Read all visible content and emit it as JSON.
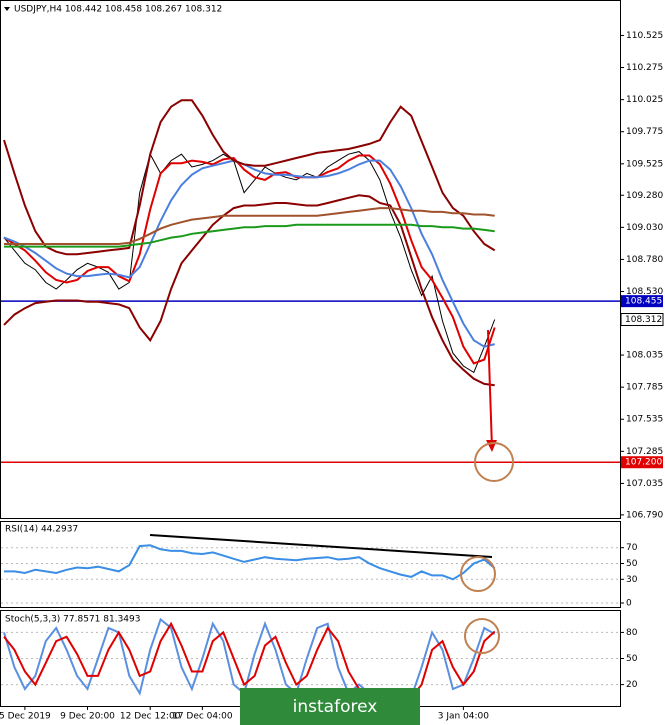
{
  "chart_data": [
    {
      "type": "line",
      "title": "USDJPY,H4  108.442 108.458 108.267 108.312",
      "xlim": [
        0,
        59
      ],
      "ylim": [
        106.75,
        110.77
      ],
      "yticks": [
        110.525,
        110.275,
        110.025,
        109.775,
        109.525,
        {
          "value": 109.28,
          "label": "109.280"
        },
        {
          "value": 109.03,
          "label": "109.030"
        },
        {
          "value": 108.78,
          "label": "108.780"
        },
        {
          "value": 108.53,
          "label": "108.530"
        },
        108.035,
        107.785,
        107.535,
        107.285,
        107.035,
        {
          "value": 106.79,
          "label": "106.790"
        }
      ],
      "hlines": [
        {
          "value": 108.455,
          "label": "108.455",
          "color": "#0000c0"
        },
        {
          "value": 107.2,
          "label": "107.200",
          "color": "#e00000"
        }
      ],
      "series": [
        {
          "color": "#000000",
          "values": [
            108.95,
            108.85,
            108.75,
            108.7,
            108.6,
            108.55,
            108.62,
            108.7,
            108.75,
            108.72,
            108.68,
            108.55,
            108.6,
            109.3,
            109.6,
            109.45,
            109.55,
            109.6,
            109.5,
            109.52,
            109.55,
            109.6,
            109.55,
            109.3,
            109.4,
            109.5,
            109.45,
            109.42,
            109.4,
            109.45,
            109.42,
            109.5,
            109.55,
            109.6,
            109.62,
            109.55,
            109.4,
            109.15,
            108.95,
            108.7,
            108.5,
            108.65,
            108.3,
            108.05,
            107.95,
            107.9,
            108.1,
            108.312
          ]
        },
        {
          "color": "#e00000",
          "values": [
            108.95,
            108.9,
            108.85,
            108.77,
            108.68,
            108.62,
            108.6,
            108.62,
            108.69,
            108.72,
            108.72,
            108.65,
            108.61,
            108.82,
            109.17,
            109.45,
            109.53,
            109.53,
            109.55,
            109.54,
            109.52,
            109.56,
            109.57,
            109.48,
            109.42,
            109.4,
            109.45,
            109.46,
            109.42,
            109.42,
            109.42,
            109.46,
            109.49,
            109.55,
            109.59,
            109.59,
            109.52,
            109.37,
            109.17,
            108.93,
            108.72,
            108.62,
            108.48,
            108.33,
            108.1,
            107.97,
            108.0,
            108.25
          ]
        },
        {
          "color": "#4a7fe0",
          "values": [
            108.95,
            108.92,
            108.88,
            108.83,
            108.77,
            108.71,
            108.67,
            108.65,
            108.65,
            108.66,
            108.67,
            108.66,
            108.64,
            108.72,
            108.9,
            109.08,
            109.24,
            109.36,
            109.44,
            109.49,
            109.51,
            109.53,
            109.55,
            109.52,
            109.48,
            109.45,
            109.44,
            109.44,
            109.43,
            109.42,
            109.42,
            109.43,
            109.45,
            109.48,
            109.52,
            109.55,
            109.55,
            109.48,
            109.35,
            109.18,
            108.98,
            108.82,
            108.62,
            108.45,
            108.28,
            108.15,
            108.1,
            108.12
          ]
        },
        {
          "color": "#8b0000",
          "values": [
            109.71,
            109.45,
            109.2,
            109.0,
            108.88,
            108.84,
            108.82,
            108.82,
            108.83,
            108.84,
            108.85,
            108.86,
            108.87,
            109.2,
            109.6,
            109.85,
            109.97,
            110.02,
            110.02,
            109.9,
            109.75,
            109.62,
            109.55,
            109.52,
            109.51,
            109.51,
            109.53,
            109.55,
            109.57,
            109.59,
            109.61,
            109.62,
            109.63,
            109.64,
            109.66,
            109.68,
            109.71,
            109.85,
            109.97,
            109.9,
            109.7,
            109.5,
            109.3,
            109.18,
            109.12,
            109.0,
            108.9,
            108.85
          ]
        },
        {
          "color": "#8b0000",
          "values": [
            108.27,
            108.35,
            108.4,
            108.44,
            108.45,
            108.46,
            108.46,
            108.46,
            108.45,
            108.45,
            108.44,
            108.43,
            108.4,
            108.25,
            108.15,
            108.3,
            108.55,
            108.75,
            108.85,
            108.95,
            109.05,
            109.12,
            109.18,
            109.2,
            109.2,
            109.21,
            109.22,
            109.22,
            109.21,
            109.2,
            109.2,
            109.22,
            109.24,
            109.26,
            109.28,
            109.27,
            109.22,
            109.2,
            109.05,
            108.8,
            108.55,
            108.33,
            108.15,
            108.0,
            107.92,
            107.85,
            107.81,
            107.8
          ]
        },
        {
          "color": "#a0522d",
          "values": [
            108.9,
            108.9,
            108.9,
            108.9,
            108.9,
            108.9,
            108.9,
            108.9,
            108.9,
            108.9,
            108.9,
            108.9,
            108.91,
            108.94,
            108.98,
            109.02,
            109.05,
            109.07,
            109.09,
            109.1,
            109.11,
            109.12,
            109.12,
            109.12,
            109.12,
            109.12,
            109.12,
            109.12,
            109.12,
            109.12,
            109.12,
            109.13,
            109.14,
            109.15,
            109.16,
            109.17,
            109.18,
            109.18,
            109.17,
            109.16,
            109.16,
            109.15,
            109.15,
            109.14,
            109.14,
            109.13,
            109.13,
            109.12
          ]
        },
        {
          "color": "#1a9a1a",
          "values": [
            108.88,
            108.88,
            108.88,
            108.88,
            108.88,
            108.88,
            108.88,
            108.88,
            108.88,
            108.88,
            108.88,
            108.88,
            108.89,
            108.9,
            108.91,
            108.93,
            108.95,
            108.96,
            108.98,
            108.99,
            109.0,
            109.01,
            109.02,
            109.03,
            109.03,
            109.04,
            109.04,
            109.04,
            109.05,
            109.05,
            109.05,
            109.05,
            109.05,
            109.05,
            109.05,
            109.05,
            109.05,
            109.05,
            109.05,
            109.05,
            109.04,
            109.04,
            109.03,
            109.03,
            109.02,
            109.02,
            109.01,
            109.0
          ]
        }
      ]
    },
    {
      "type": "line",
      "title": "RSI(14) 44.2937",
      "xlim": [
        0,
        59
      ],
      "ylim": [
        0,
        100
      ],
      "yticks": [
        70,
        50,
        30,
        0
      ],
      "series": [
        {
          "color": "#3a8ee6",
          "values": [
            40,
            40,
            38,
            42,
            40,
            38,
            42,
            45,
            44,
            46,
            43,
            40,
            48,
            72,
            73,
            68,
            66,
            66,
            63,
            62,
            64,
            60,
            56,
            52,
            55,
            58,
            56,
            55,
            54,
            56,
            57,
            58,
            55,
            56,
            58,
            50,
            44,
            40,
            36,
            33,
            40,
            35,
            35,
            30,
            38,
            50,
            55,
            44
          ]
        }
      ]
    },
    {
      "type": "line",
      "title": "Stoch(5,3,3) 77.8571 81.3493",
      "xlim": [
        0,
        59
      ],
      "ylim": [
        0,
        100
      ],
      "yticks": [
        80,
        50,
        20
      ],
      "xticks": [
        {
          "value": 2,
          "label": "5 Dec 2019"
        },
        {
          "value": 8,
          "label": "9 Dec 20:00"
        },
        {
          "value": 14,
          "label": "12 Dec 12:00"
        },
        {
          "value": 19,
          "label": "17 Dec 04:00"
        },
        {
          "value": 44,
          "label": "3 Jan 04:00"
        }
      ],
      "series": [
        {
          "color": "#5b8fe0",
          "values": [
            80,
            40,
            15,
            30,
            70,
            85,
            60,
            30,
            15,
            50,
            85,
            80,
            30,
            10,
            60,
            95,
            85,
            40,
            15,
            50,
            90,
            70,
            20,
            10,
            55,
            90,
            60,
            20,
            10,
            50,
            85,
            90,
            40,
            10,
            20,
            10,
            5,
            10,
            5,
            5,
            40,
            80,
            60,
            15,
            20,
            50,
            85,
            78
          ]
        },
        {
          "color": "#e00000",
          "values": [
            75,
            60,
            35,
            20,
            45,
            70,
            75,
            55,
            30,
            30,
            60,
            80,
            60,
            30,
            35,
            70,
            90,
            65,
            35,
            35,
            70,
            80,
            50,
            20,
            30,
            65,
            75,
            45,
            20,
            30,
            60,
            85,
            70,
            35,
            15,
            15,
            10,
            8,
            7,
            5,
            20,
            60,
            70,
            40,
            20,
            35,
            70,
            81
          ]
        }
      ]
    }
  ],
  "watermark": "instaforex"
}
